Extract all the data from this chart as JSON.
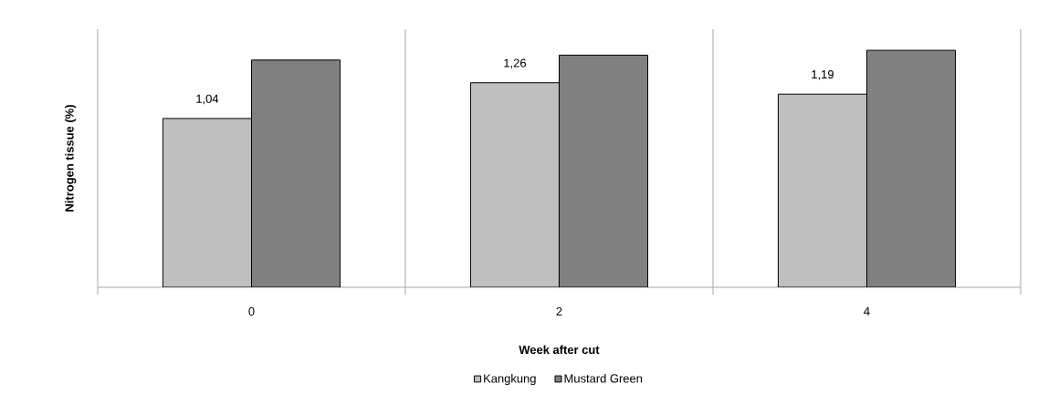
{
  "chart_data": {
    "type": "bar",
    "xlabel": "Week after cut",
    "ylabel": "Nitrogen tissue (%)",
    "categories": [
      "0",
      "2",
      "4"
    ],
    "series": [
      {
        "name": "Kangkung",
        "color": "#bfbfbf",
        "values": [
          1.04,
          1.26,
          1.19
        ],
        "value_labels": [
          "1,04",
          "1,26",
          "1,19"
        ]
      },
      {
        "name": "Mustard Green",
        "color": "#808080",
        "values": [
          1.4,
          1.43,
          1.46
        ]
      }
    ],
    "ylim": [
      0,
      1.59
    ],
    "grid": "x",
    "legend": "bottom",
    "tick_labels": "x"
  }
}
